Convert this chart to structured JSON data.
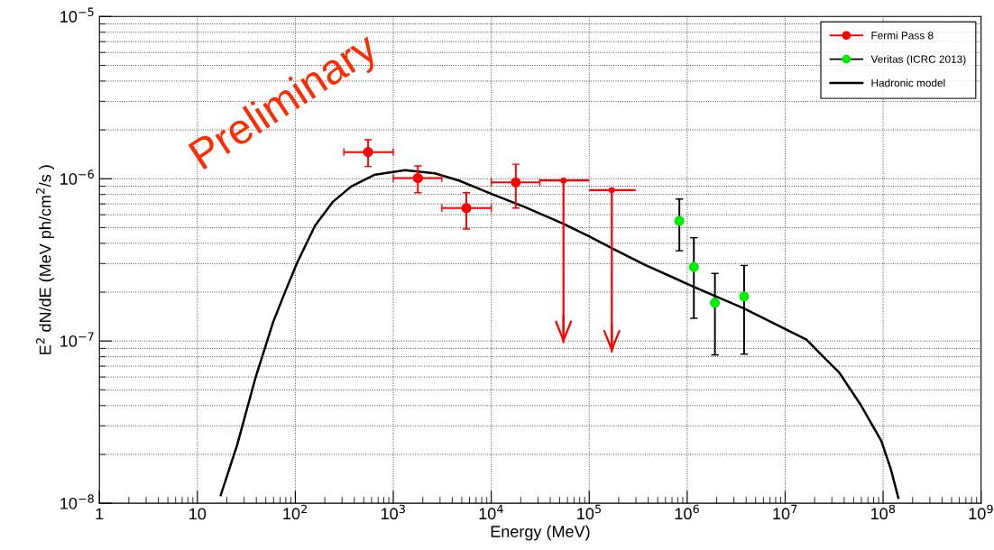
{
  "chart_data": {
    "type": "scatter",
    "xlabel": "Energy (MeV)",
    "ylabel": "E$^{2}$ dN/dE (MeV ph/cm$^{2}$/s )",
    "log": "xy",
    "grid": true,
    "legend": "top right",
    "xlim": [
      1,
      1000000000
    ],
    "ylim": [
      1e-08,
      1e-05
    ],
    "xticks": [
      1,
      10,
      {
        "value": 100,
        "label": "10$^{2}$"
      },
      {
        "value": 1000,
        "label": "10$^{3}$"
      },
      {
        "value": 10000,
        "label": "10$^{4}$"
      },
      {
        "value": 100000,
        "label": "10$^{5}$"
      },
      {
        "value": 1000000,
        "label": "10$^{6}$"
      },
      {
        "value": 10000000,
        "label": "10$^{7}$"
      },
      {
        "value": 100000000,
        "label": "10$^{8}$"
      },
      {
        "value": 1000000000,
        "label": "10$^{9}$"
      }
    ],
    "yticks": [
      {
        "value": 1e-08,
        "label": "10$^{−8}$"
      },
      {
        "value": 1e-07,
        "label": "10$^{−7}$"
      },
      {
        "value": 1e-06,
        "label": "10$^{−6}$"
      },
      {
        "value": 1e-05,
        "label": "10$^{−5}$"
      }
    ],
    "annotations": [
      "Preliminary"
    ],
    "series": [
      {
        "name": "Fermi Pass 8",
        "color": "#ff0000",
        "marker": "circle",
        "x": [
          553,
          1782,
          5570,
          17800
        ],
        "values": [
          1.46e-06,
          1.01e-06,
          6.6e-07,
          9.5e-07
        ],
        "errors": [
          [
            1.19e-06,
            1.74e-06
          ],
          [
            8.2e-07,
            1.2e-06
          ],
          [
            4.9e-07,
            8.2e-07
          ],
          [
            6.6e-07,
            1.23e-06
          ]
        ],
        "xerrors": [
          [
            313,
            1000
          ],
          [
            1000,
            3130
          ],
          [
            3130,
            10000
          ],
          [
            10000,
            31300
          ]
        ]
      },
      {
        "color": "#ff0000",
        "marker": "circle",
        "x": [
          54600,
          170000
        ],
        "values": [
          9.75e-07,
          8.5e-07
        ],
        "errors": [
          [
            9.7e-08,
            9.75e-07
          ],
          [
            8.5e-08,
            8.5e-07
          ]
        ],
        "xerrors": [
          [
            31300,
            100000
          ],
          [
            100000,
            298000
          ]
        ]
      },
      {
        "name": "Veritas (ICRC 2013)",
        "color": "#00ee00",
        "marker": "circle",
        "x": [
          832000,
          1170000,
          1920000,
          3810000
        ],
        "values": [
          5.5e-07,
          2.86e-07,
          1.72e-07,
          1.88e-07
        ],
        "errors": [
          [
            3.6e-07,
            7.5e-07
          ],
          [
            1.38e-07,
            4.33e-07
          ],
          [
            8.2e-08,
            2.61e-07
          ],
          [
            8.3e-08,
            2.92e-07
          ]
        ]
      },
      {
        "name": "Hadronic model",
        "type": "line",
        "color": "#000000",
        "marker": "none",
        "x": [
          17.3,
          25.5,
          38.9,
          59.4,
          78.7,
          104,
          159,
          243,
          371,
          650,
          1315,
          2660,
          4680,
          10100,
          22000,
          55000,
          98600,
          182000,
          368000,
          744000,
          1180000,
          3760000,
          9380000,
          16500000,
          23500000,
          35800000,
          58600000,
          96000000,
          120000000,
          143000000
        ],
        "values": [
          1.12e-08,
          2.29e-08,
          5.84e-08,
          1.31e-07,
          2.01e-07,
          3.02e-07,
          5.14e-07,
          7.23e-07,
          8.96e-07,
          1.06e-06,
          1.13e-06,
          1.08e-06,
          9.75e-07,
          8.05e-07,
          6.7e-07,
          5.26e-07,
          4.43e-07,
          3.66e-07,
          2.95e-07,
          2.44e-07,
          2.15e-07,
          1.59e-07,
          1.21e-07,
          1.02e-07,
          8.2e-08,
          6.37e-08,
          4.07e-08,
          2.42e-08,
          1.62e-08,
          1.08e-08
        ]
      }
    ]
  }
}
